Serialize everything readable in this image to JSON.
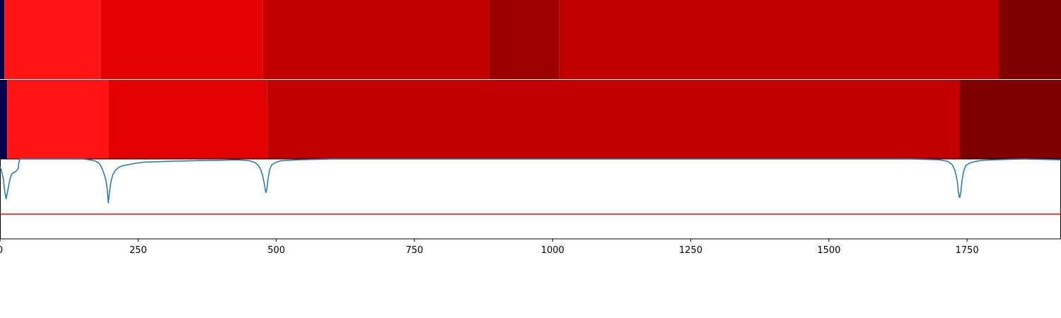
{
  "chart_data": [
    {
      "type": "heatmap",
      "xlim": [
        0,
        1920
      ],
      "segments": [
        {
          "start": 0,
          "end": 8,
          "color": "#00004d"
        },
        {
          "start": 8,
          "end": 182,
          "color": "#ff1414"
        },
        {
          "start": 182,
          "end": 476,
          "color": "#e30000"
        },
        {
          "start": 476,
          "end": 885,
          "color": "#c20000"
        },
        {
          "start": 885,
          "end": 1012,
          "color": "#9e0000"
        },
        {
          "start": 1012,
          "end": 1808,
          "color": "#c20000"
        },
        {
          "start": 1808,
          "end": 1920,
          "color": "#800000"
        }
      ]
    },
    {
      "type": "heatmap",
      "xlim": [
        0,
        1920
      ],
      "segments": [
        {
          "start": 0,
          "end": 13,
          "color": "#00004d"
        },
        {
          "start": 13,
          "end": 196,
          "color": "#ff1414"
        },
        {
          "start": 196,
          "end": 483,
          "color": "#e30000"
        },
        {
          "start": 483,
          "end": 1737,
          "color": "#c20000"
        },
        {
          "start": 1737,
          "end": 1920,
          "color": "#800000"
        }
      ]
    },
    {
      "type": "line",
      "xlim": [
        0,
        1920
      ],
      "ylim": [
        0,
        1
      ],
      "xticks": [
        0,
        250,
        500,
        750,
        1000,
        1250,
        1500,
        1750
      ],
      "xtick_labels": [
        "0",
        "250",
        "500",
        "750",
        "1000",
        "1250",
        "1500",
        "1750"
      ],
      "threshold": {
        "value": 0.31,
        "color": "#ff0000"
      },
      "series": [
        {
          "color": "#1f77b4",
          "x": [
            0,
            3,
            6,
            9,
            11,
            14,
            18,
            22,
            28,
            33,
            34,
            36,
            40,
            60,
            80,
            100,
            120,
            150,
            162,
            170,
            177,
            182,
            186,
            189,
            192,
            194,
            196,
            198,
            201,
            204,
            209,
            216,
            225,
            240,
            260,
            300,
            360,
            400,
            430,
            450,
            460,
            466,
            471,
            475,
            478,
            480,
            481,
            483,
            485,
            488,
            492,
            500,
            510,
            540,
            600,
            800,
            1000,
            1200,
            1500,
            1650,
            1700,
            1715,
            1723,
            1728,
            1732,
            1734,
            1736,
            1737,
            1739,
            1741,
            1744,
            1748,
            1755,
            1765,
            1780,
            1800,
            1850,
            1920
          ],
          "y": [
            0.9,
            0.85,
            0.75,
            0.58,
            0.5,
            0.6,
            0.75,
            0.82,
            0.84,
            0.88,
            0.95,
            1.0,
            1.0,
            1.0,
            1.0,
            1.0,
            1.0,
            1.0,
            0.99,
            0.98,
            0.96,
            0.92,
            0.86,
            0.8,
            0.72,
            0.62,
            0.45,
            0.58,
            0.72,
            0.8,
            0.86,
            0.9,
            0.92,
            0.94,
            0.96,
            0.97,
            0.98,
            0.985,
            0.99,
            0.98,
            0.96,
            0.93,
            0.88,
            0.8,
            0.7,
            0.62,
            0.58,
            0.62,
            0.75,
            0.87,
            0.93,
            0.96,
            0.98,
            0.99,
            1.0,
            1.0,
            1.0,
            1.0,
            1.0,
            1.0,
            0.99,
            0.97,
            0.93,
            0.86,
            0.74,
            0.6,
            0.52,
            0.52,
            0.6,
            0.74,
            0.85,
            0.92,
            0.95,
            0.97,
            0.985,
            0.99,
            1.0,
            0.99
          ]
        }
      ]
    }
  ]
}
